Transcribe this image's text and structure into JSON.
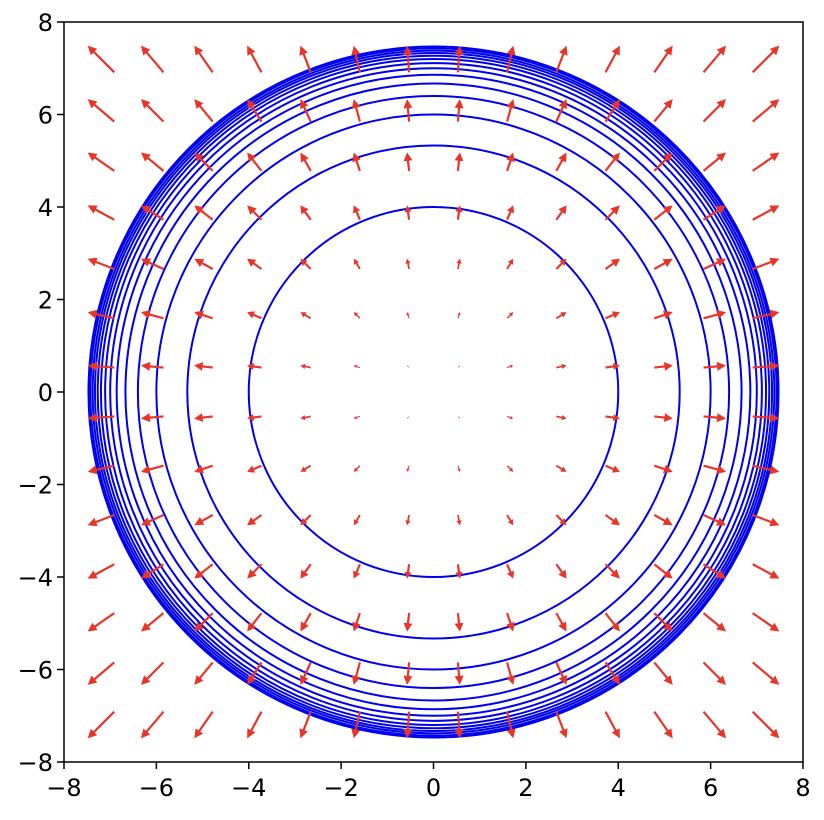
{
  "chart_data": {
    "type": "quiver",
    "xlim": [
      -8,
      8
    ],
    "ylim": [
      -8,
      8
    ],
    "xticks": [
      {
        "value": -8,
        "label": "−8"
      },
      {
        "value": -6,
        "label": "−6"
      },
      {
        "value": -4,
        "label": "−4"
      },
      {
        "value": -2,
        "label": "−2"
      },
      0,
      2,
      4,
      6,
      8
    ],
    "yticks": [
      {
        "value": -8,
        "label": "−8"
      },
      {
        "value": -6,
        "label": "−6"
      },
      {
        "value": -4,
        "label": "−4"
      },
      {
        "value": -2,
        "label": "−2"
      },
      0,
      2,
      4,
      6,
      8
    ],
    "contours": {
      "color": "#0000ee",
      "radii": [
        4,
        5.33,
        6,
        6.4,
        6.67,
        6.86,
        7,
        7.11,
        7.2,
        7.27,
        7.33,
        7.38,
        7.43,
        7.47
      ]
    },
    "quiver": {
      "color": "#e8352a",
      "x": [
        -7.2,
        -6.09,
        -4.98,
        -3.88,
        -2.77,
        -1.66,
        -0.55,
        0.55,
        1.66,
        2.77,
        3.88,
        4.98,
        6.09,
        7.2
      ],
      "y": [
        -7.2,
        -6.09,
        -4.98,
        -3.88,
        -2.77,
        -1.66,
        -0.55,
        0.55,
        1.66,
        2.77,
        3.88,
        4.98,
        6.09,
        7.2
      ],
      "u": [
        [
          -7.2,
          -6.09,
          -4.98,
          -3.88,
          -2.77,
          -1.66,
          -0.55,
          0.55,
          1.66,
          2.77,
          3.88,
          4.98,
          6.09,
          7.2
        ],
        [
          -7.2,
          -6.09,
          -4.98,
          -3.88,
          -2.77,
          -1.66,
          -0.55,
          0.55,
          1.66,
          2.77,
          3.88,
          4.98,
          6.09,
          7.2
        ],
        [
          -7.2,
          -6.09,
          -4.98,
          -3.88,
          -2.77,
          -1.66,
          -0.55,
          0.55,
          1.66,
          2.77,
          3.88,
          4.98,
          6.09,
          7.2
        ],
        [
          -7.2,
          -6.09,
          -4.98,
          -3.88,
          -2.77,
          -1.66,
          -0.55,
          0.55,
          1.66,
          2.77,
          3.88,
          4.98,
          6.09,
          7.2
        ],
        [
          -7.2,
          -6.09,
          -4.98,
          -3.88,
          -2.77,
          -1.66,
          -0.55,
          0.55,
          1.66,
          2.77,
          3.88,
          4.98,
          6.09,
          7.2
        ],
        [
          -7.2,
          -6.09,
          -4.98,
          -3.88,
          -2.77,
          -1.66,
          -0.55,
          0.55,
          1.66,
          2.77,
          3.88,
          4.98,
          6.09,
          7.2
        ],
        [
          -7.2,
          -6.09,
          -4.98,
          -3.88,
          -2.77,
          -1.66,
          -0.55,
          0.55,
          1.66,
          2.77,
          3.88,
          4.98,
          6.09,
          7.2
        ],
        [
          -7.2,
          -6.09,
          -4.98,
          -3.88,
          -2.77,
          -1.66,
          -0.55,
          0.55,
          1.66,
          2.77,
          3.88,
          4.98,
          6.09,
          7.2
        ],
        [
          -7.2,
          -6.09,
          -4.98,
          -3.88,
          -2.77,
          -1.66,
          -0.55,
          0.55,
          1.66,
          2.77,
          3.88,
          4.98,
          6.09,
          7.2
        ],
        [
          -7.2,
          -6.09,
          -4.98,
          -3.88,
          -2.77,
          -1.66,
          -0.55,
          0.55,
          1.66,
          2.77,
          3.88,
          4.98,
          6.09,
          7.2
        ],
        [
          -7.2,
          -6.09,
          -4.98,
          -3.88,
          -2.77,
          -1.66,
          -0.55,
          0.55,
          1.66,
          2.77,
          3.88,
          4.98,
          6.09,
          7.2
        ],
        [
          -7.2,
          -6.09,
          -4.98,
          -3.88,
          -2.77,
          -1.66,
          -0.55,
          0.55,
          1.66,
          2.77,
          3.88,
          4.98,
          6.09,
          7.2
        ],
        [
          -7.2,
          -6.09,
          -4.98,
          -3.88,
          -2.77,
          -1.66,
          -0.55,
          0.55,
          1.66,
          2.77,
          3.88,
          4.98,
          6.09,
          7.2
        ],
        [
          -7.2,
          -6.09,
          -4.98,
          -3.88,
          -2.77,
          -1.66,
          -0.55,
          0.55,
          1.66,
          2.77,
          3.88,
          4.98,
          6.09,
          7.2
        ]
      ],
      "v": [
        [
          -7.2,
          -7.2,
          -7.2,
          -7.2,
          -7.2,
          -7.2,
          -7.2,
          -7.2,
          -7.2,
          -7.2,
          -7.2,
          -7.2,
          -7.2,
          -7.2
        ],
        [
          -6.09,
          -6.09,
          -6.09,
          -6.09,
          -6.09,
          -6.09,
          -6.09,
          -6.09,
          -6.09,
          -6.09,
          -6.09,
          -6.09,
          -6.09,
          -6.09
        ],
        [
          -4.98,
          -4.98,
          -4.98,
          -4.98,
          -4.98,
          -4.98,
          -4.98,
          -4.98,
          -4.98,
          -4.98,
          -4.98,
          -4.98,
          -4.98,
          -4.98
        ],
        [
          -3.88,
          -3.88,
          -3.88,
          -3.88,
          -3.88,
          -3.88,
          -3.88,
          -3.88,
          -3.88,
          -3.88,
          -3.88,
          -3.88,
          -3.88,
          -3.88
        ],
        [
          -2.77,
          -2.77,
          -2.77,
          -2.77,
          -2.77,
          -2.77,
          -2.77,
          -2.77,
          -2.77,
          -2.77,
          -2.77,
          -2.77,
          -2.77,
          -2.77
        ],
        [
          -1.66,
          -1.66,
          -1.66,
          -1.66,
          -1.66,
          -1.66,
          -1.66,
          -1.66,
          -1.66,
          -1.66,
          -1.66,
          -1.66,
          -1.66,
          -1.66
        ],
        [
          -0.55,
          -0.55,
          -0.55,
          -0.55,
          -0.55,
          -0.55,
          -0.55,
          -0.55,
          -0.55,
          -0.55,
          -0.55,
          -0.55,
          -0.55,
          -0.55
        ],
        [
          0.55,
          0.55,
          0.55,
          0.55,
          0.55,
          0.55,
          0.55,
          0.55,
          0.55,
          0.55,
          0.55,
          0.55,
          0.55,
          0.55
        ],
        [
          1.66,
          1.66,
          1.66,
          1.66,
          1.66,
          1.66,
          1.66,
          1.66,
          1.66,
          1.66,
          1.66,
          1.66,
          1.66,
          1.66
        ],
        [
          2.77,
          2.77,
          2.77,
          2.77,
          2.77,
          2.77,
          2.77,
          2.77,
          2.77,
          2.77,
          2.77,
          2.77,
          2.77,
          2.77
        ],
        [
          3.88,
          3.88,
          3.88,
          3.88,
          3.88,
          3.88,
          3.88,
          3.88,
          3.88,
          3.88,
          3.88,
          3.88,
          3.88,
          3.88
        ],
        [
          4.98,
          4.98,
          4.98,
          4.98,
          4.98,
          4.98,
          4.98,
          4.98,
          4.98,
          4.98,
          4.98,
          4.98,
          4.98,
          4.98
        ],
        [
          6.09,
          6.09,
          6.09,
          6.09,
          6.09,
          6.09,
          6.09,
          6.09,
          6.09,
          6.09,
          6.09,
          6.09,
          6.09,
          6.09
        ],
        [
          7.2,
          7.2,
          7.2,
          7.2,
          7.2,
          7.2,
          7.2,
          7.2,
          7.2,
          7.2,
          7.2,
          7.2,
          7.2,
          7.2
        ]
      ]
    }
  }
}
